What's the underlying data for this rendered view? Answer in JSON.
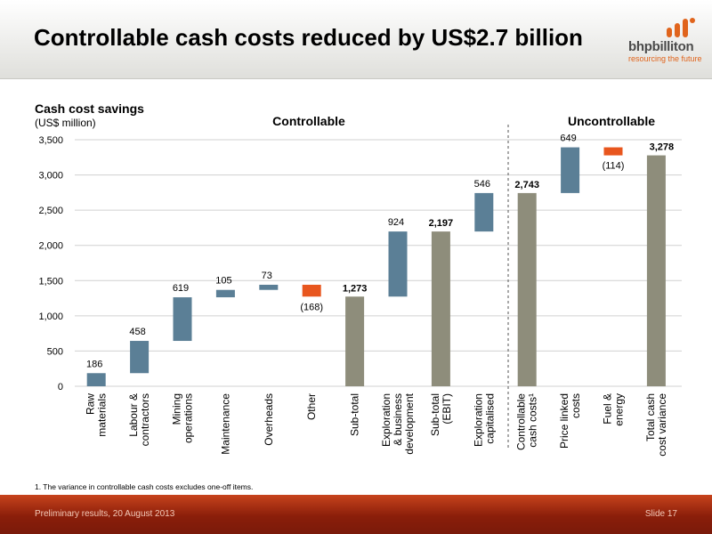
{
  "slide": {
    "title": "Controllable cash costs reduced by US$2.7 billion",
    "logo_name": "bhpbilliton",
    "logo_tagline": "resourcing the future",
    "footnote": "1.  The variance in controllable cash costs excludes one-off items.",
    "footer_left": "Preliminary results, 20 August 2013",
    "footer_right": "Slide 17"
  },
  "colors": {
    "increase": "#5b7f96",
    "decrease": "#e8561e",
    "total": "#8e8d7b",
    "grid": "#d0d0d0",
    "brand_orange": "#e0641c"
  },
  "chart_data": {
    "type": "bar",
    "subtype": "waterfall",
    "title": "Cash cost savings",
    "subtitle": "(US$ million)",
    "ylim": [
      0,
      3500
    ],
    "yticks": [
      0,
      500,
      1000,
      1500,
      2000,
      2500,
      3000,
      3500
    ],
    "ytick_labels": [
      "0",
      "500",
      "1,000",
      "1,500",
      "2,000",
      "2,500",
      "3,000",
      "3,500"
    ],
    "grid": true,
    "sections": [
      {
        "label": "Controllable",
        "from_index": 0,
        "to_index": 9
      },
      {
        "label": "Uncontrollable",
        "from_index": 10,
        "to_index": 12
      }
    ],
    "categories": [
      [
        "Raw",
        "materials"
      ],
      [
        "Labour &",
        "contractors"
      ],
      [
        "Mining",
        "operations"
      ],
      [
        "Maintenance"
      ],
      [
        "Overheads"
      ],
      [
        "Other"
      ],
      [
        "Sub-total"
      ],
      [
        "Exploration",
        "& business",
        "development"
      ],
      [
        "Sub-total",
        "(EBIT)"
      ],
      [
        "Exploration",
        "capitalised"
      ],
      [
        "Controllable",
        "cash costs¹"
      ],
      [
        "Price linked",
        "costs"
      ],
      [
        "Fuel &",
        "energy"
      ],
      [
        "Total cash",
        "cost variance"
      ]
    ],
    "bars": [
      {
        "kind": "increase",
        "value": 186,
        "label": "186",
        "bold": false
      },
      {
        "kind": "increase",
        "value": 458,
        "label": "458",
        "bold": false
      },
      {
        "kind": "increase",
        "value": 619,
        "label": "619",
        "bold": false
      },
      {
        "kind": "increase",
        "value": 105,
        "label": "105",
        "bold": false
      },
      {
        "kind": "increase",
        "value": 73,
        "label": "73",
        "bold": false
      },
      {
        "kind": "decrease",
        "value": -168,
        "label": "(168)",
        "bold": false
      },
      {
        "kind": "total",
        "value": 1273,
        "label": "1,273",
        "bold": true
      },
      {
        "kind": "increase",
        "value": 924,
        "label": "924",
        "bold": false
      },
      {
        "kind": "total",
        "value": 2197,
        "label": "2,197",
        "bold": true
      },
      {
        "kind": "increase",
        "value": 546,
        "label": "546",
        "bold": false
      },
      {
        "kind": "total",
        "value": 2743,
        "label": "2,743",
        "bold": true
      },
      {
        "kind": "increase",
        "value": 649,
        "label": "649",
        "bold": false
      },
      {
        "kind": "decrease",
        "value": -114,
        "label": "(114)",
        "bold": false
      },
      {
        "kind": "total",
        "value": 3278,
        "label": "3,278",
        "bold": true
      }
    ]
  }
}
